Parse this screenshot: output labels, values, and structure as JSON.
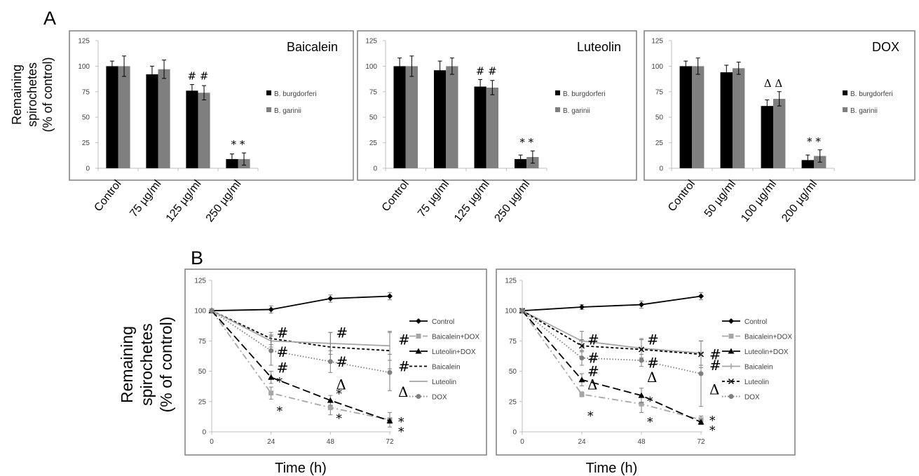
{
  "panel_labels": {
    "a": "A",
    "b": "B"
  },
  "colors": {
    "black": "#000000",
    "gray": "#7f7f7f",
    "lightgray": "#a6a6a6",
    "frame": "#7f7f7f"
  },
  "chart_data": [
    {
      "type": "bar",
      "panel": "A",
      "title": "Baicalein",
      "categories": [
        "Control",
        "75 µg/ml",
        "125 µg/ml",
        "250 µg/ml"
      ],
      "series": [
        {
          "name": "B. burgdorferi",
          "values": [
            100,
            92,
            76,
            9
          ],
          "errors": [
            5,
            8,
            6,
            5
          ]
        },
        {
          "name": "B. garinii",
          "values": [
            100,
            97,
            74,
            9
          ],
          "errors": [
            10,
            9,
            7,
            6
          ]
        }
      ],
      "annotations": [
        {
          "category": 2,
          "text": "# #"
        },
        {
          "category": 3,
          "text": "* *"
        }
      ],
      "ylabel": "Remaining spirochetes (% of control)",
      "yticks": [
        0,
        25,
        50,
        75,
        100,
        125
      ],
      "ylim": [
        0,
        125
      ],
      "legend": "right"
    },
    {
      "type": "bar",
      "panel": "A",
      "title": "Luteolin",
      "categories": [
        "Control",
        "75 µg/ml",
        "125 µg/ml",
        "250 µg/ml"
      ],
      "series": [
        {
          "name": "B. burgdorferi",
          "values": [
            100,
            96,
            80,
            9
          ],
          "errors": [
            8,
            9,
            7,
            4
          ]
        },
        {
          "name": "B. garinii",
          "values": [
            100,
            100,
            79,
            11
          ],
          "errors": [
            10,
            8,
            7,
            6
          ]
        }
      ],
      "annotations": [
        {
          "category": 2,
          "text": "# #"
        },
        {
          "category": 3,
          "text": "* *"
        }
      ],
      "yticks": [
        0,
        25,
        50,
        75,
        100,
        125
      ],
      "ylim": [
        0,
        125
      ],
      "legend": "right"
    },
    {
      "type": "bar",
      "panel": "A",
      "title": "DOX",
      "categories": [
        "Control",
        "50 µg/ml",
        "100 µg/ml",
        "200 µg/ml"
      ],
      "series": [
        {
          "name": "B. burgdorferi",
          "values": [
            100,
            94,
            61,
            8
          ],
          "errors": [
            5,
            7,
            6,
            5
          ]
        },
        {
          "name": "B. garinii",
          "values": [
            100,
            98,
            68,
            12
          ],
          "errors": [
            8,
            6,
            7,
            6
          ]
        }
      ],
      "annotations": [
        {
          "category": 2,
          "text": "Δ Δ"
        },
        {
          "category": 3,
          "text": "* *"
        }
      ],
      "yticks": [
        0,
        25,
        50,
        75,
        100,
        125
      ],
      "ylim": [
        0,
        125
      ],
      "legend": "right"
    },
    {
      "type": "line",
      "panel": "B",
      "x": [
        0,
        24,
        48,
        72
      ],
      "series": [
        {
          "name": "Control",
          "values": [
            100,
            101,
            110,
            112
          ],
          "errors": [
            0,
            3,
            3,
            3
          ],
          "style": "solid",
          "color": "#000000",
          "marker": "diamond"
        },
        {
          "name": "Baicalein+DOX",
          "values": [
            100,
            32,
            20,
            10
          ],
          "errors": [
            0,
            5,
            6,
            6
          ],
          "style": "dashdot",
          "color": "#a6a6a6",
          "marker": "square"
        },
        {
          "name": "Luteolin+DOX",
          "values": [
            100,
            45,
            26,
            9
          ],
          "errors": [
            0,
            5,
            4,
            2
          ],
          "style": "longdash",
          "color": "#000000",
          "marker": "triangle"
        },
        {
          "name": "Baicalein",
          "values": [
            100,
            77,
            70,
            67
          ],
          "errors": [
            0,
            5,
            12,
            15
          ],
          "style": "shortdash",
          "color": "#000000",
          "marker": "none"
        },
        {
          "name": "Luteolin",
          "values": [
            100,
            75,
            73,
            71
          ],
          "errors": [
            0,
            5,
            9,
            12
          ],
          "style": "solid",
          "color": "#a6a6a6",
          "marker": "none"
        },
        {
          "name": "DOX",
          "values": [
            100,
            67,
            58,
            49
          ],
          "errors": [
            0,
            12,
            9,
            15
          ],
          "style": "dotted",
          "color": "#7f7f7f",
          "marker": "circle"
        }
      ],
      "annotations": [
        {
          "x": 24,
          "y": 82,
          "text": "#"
        },
        {
          "x": 24,
          "y": 66,
          "text": "#"
        },
        {
          "x": 24,
          "y": 53,
          "text": "#"
        },
        {
          "x": 24,
          "y": 42,
          "text": "*"
        },
        {
          "x": 24,
          "y": 18,
          "text": "*"
        },
        {
          "x": 48,
          "y": 82,
          "text": "#"
        },
        {
          "x": 48,
          "y": 58,
          "text": "#"
        },
        {
          "x": 48,
          "y": 39,
          "text": "Δ"
        },
        {
          "x": 48,
          "y": 32,
          "text": "*"
        },
        {
          "x": 48,
          "y": 12,
          "text": "*"
        },
        {
          "x": 72,
          "y": 76,
          "text": "#"
        },
        {
          "x": 72,
          "y": 54,
          "text": "#"
        },
        {
          "x": 72,
          "y": 33,
          "text": "Δ"
        },
        {
          "x": 72,
          "y": 9,
          "text": "*"
        },
        {
          "x": 72,
          "y": 1,
          "text": "*"
        }
      ],
      "xlabel": "Time (h)",
      "ylabel": "Remaining spirochetes (% of control)",
      "xticks": [
        0,
        24,
        48,
        72
      ],
      "yticks": [
        0,
        25,
        50,
        75,
        100,
        125
      ],
      "ylim": [
        0,
        125
      ],
      "legend": "right"
    },
    {
      "type": "line",
      "panel": "B",
      "x": [
        0,
        24,
        48,
        72
      ],
      "series": [
        {
          "name": "Control",
          "values": [
            100,
            103,
            105,
            112
          ],
          "errors": [
            0,
            2,
            3,
            3
          ],
          "style": "solid",
          "color": "#000000",
          "marker": "diamond"
        },
        {
          "name": "Baicalein+DOX",
          "values": [
            100,
            31,
            23,
            10
          ],
          "errors": [
            0,
            2,
            7,
            3
          ],
          "style": "dashdot",
          "color": "#a6a6a6",
          "marker": "square"
        },
        {
          "name": "Luteolin+DOX",
          "values": [
            100,
            43,
            30,
            8
          ],
          "errors": [
            0,
            5,
            6,
            2
          ],
          "style": "longdash",
          "color": "#000000",
          "marker": "triangle"
        },
        {
          "name": "Baicalein",
          "values": [
            100,
            75,
            69,
            65
          ],
          "errors": [
            0,
            8,
            8,
            10
          ],
          "style": "solid",
          "color": "#a6a6a6",
          "marker": "cross"
        },
        {
          "name": "Luteolin",
          "values": [
            100,
            71,
            68,
            64
          ],
          "errors": [
            0,
            5,
            8,
            11
          ],
          "style": "shortdash",
          "color": "#000000",
          "marker": "xmark"
        },
        {
          "name": "DOX",
          "values": [
            100,
            61,
            59,
            48
          ],
          "errors": [
            0,
            6,
            5,
            27
          ],
          "style": "dotted",
          "color": "#7f7f7f",
          "marker": "circle"
        }
      ],
      "annotations": [
        {
          "x": 24,
          "y": 76,
          "text": "#"
        },
        {
          "x": 24,
          "y": 61,
          "text": "#"
        },
        {
          "x": 24,
          "y": 50,
          "text": "#"
        },
        {
          "x": 24,
          "y": 39,
          "text": "Δ"
        },
        {
          "x": 24,
          "y": 14,
          "text": "*"
        },
        {
          "x": 48,
          "y": 76,
          "text": "#"
        },
        {
          "x": 48,
          "y": 57,
          "text": "#"
        },
        {
          "x": 48,
          "y": 45,
          "text": "Δ"
        },
        {
          "x": 48,
          "y": 26,
          "text": "*"
        },
        {
          "x": 48,
          "y": 9,
          "text": "*"
        },
        {
          "x": 72,
          "y": 64,
          "text": "#"
        },
        {
          "x": 72,
          "y": 55,
          "text": "#"
        },
        {
          "x": 72,
          "y": 35,
          "text": "Δ"
        },
        {
          "x": 72,
          "y": 10,
          "text": "*"
        },
        {
          "x": 72,
          "y": 2,
          "text": "*"
        }
      ],
      "xlabel": "Time (h)",
      "xticks": [
        0,
        24,
        48,
        72
      ],
      "yticks": [
        0,
        25,
        50,
        75,
        100,
        125
      ],
      "ylim": [
        0,
        125
      ],
      "legend": "right"
    }
  ]
}
